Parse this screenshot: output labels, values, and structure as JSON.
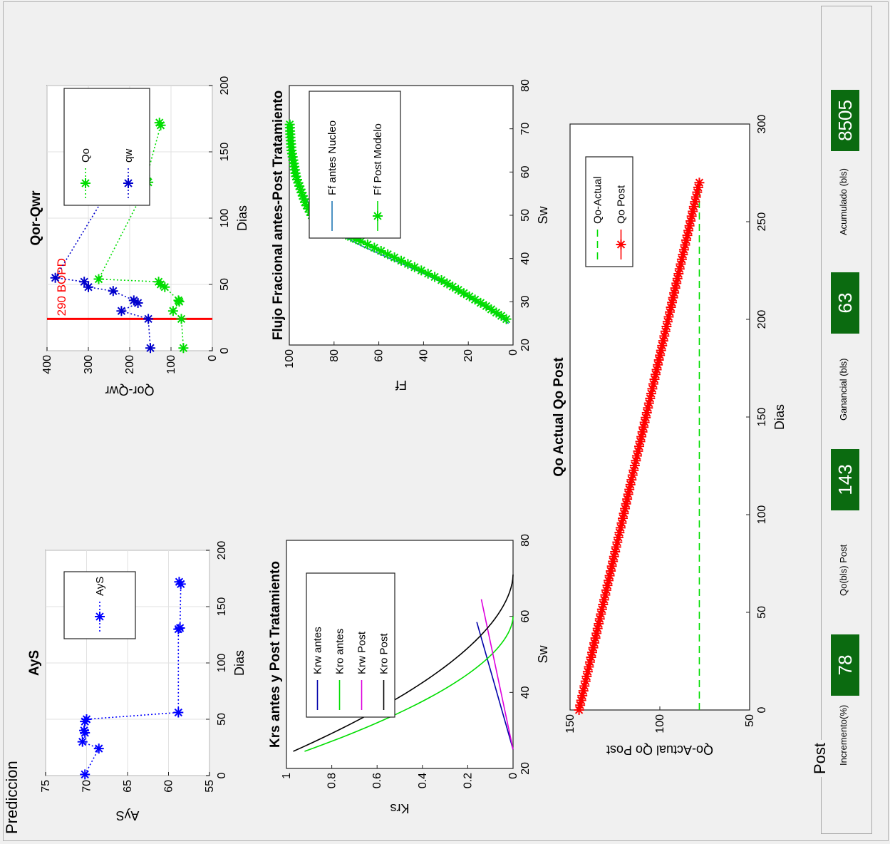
{
  "window": {
    "panel_title": "Prediccion"
  },
  "charts": [
    {
      "type": "scatter",
      "title": "AyS",
      "xlabel": "Dias",
      "ylabel": "AyS",
      "xlim": [
        0,
        200
      ],
      "ylim": [
        55,
        75
      ],
      "xticks": [
        0,
        50,
        100,
        150,
        200
      ],
      "yticks": [
        55,
        60,
        65,
        70,
        75
      ],
      "grid": true,
      "legend_position": "top-right",
      "series": [
        {
          "name": "AyS",
          "color": "#0000ff",
          "line": "dotted",
          "marker": "star",
          "x": [
            1,
            24,
            30,
            38,
            40,
            48,
            50,
            56,
            130,
            131,
            170,
            172
          ],
          "y": [
            70.2,
            68.5,
            70.5,
            70.2,
            70.3,
            70.2,
            70.0,
            58.8,
            58.8,
            58.6,
            58.5,
            58.7
          ]
        }
      ]
    },
    {
      "type": "scatter",
      "title": "Qor-Qwr",
      "xlabel": "Dias",
      "ylabel": "Qor-Qwr",
      "xlim": [
        0,
        200
      ],
      "ylim": [
        0,
        400
      ],
      "xticks": [
        0,
        50,
        100,
        150,
        200
      ],
      "yticks": [
        0,
        100,
        200,
        300,
        400
      ],
      "grid": true,
      "legend_position": "top-right",
      "annotation": {
        "text": "290 BOPD",
        "color": "#ff0000",
        "vline_x": 24
      },
      "series": [
        {
          "name": "Qo",
          "color": "#00dd00",
          "line": "dotted",
          "marker": "star",
          "x": [
            2,
            24,
            30,
            37,
            38,
            48,
            50,
            52,
            54,
            127,
            130,
            170,
            172
          ],
          "y": [
            70,
            75,
            95,
            80,
            82,
            115,
            125,
            130,
            275,
            155,
            160,
            125,
            128
          ]
        },
        {
          "name": "qw",
          "color": "#0000cc",
          "line": "dotted",
          "marker": "star",
          "x": [
            2,
            24,
            30,
            36,
            38,
            45,
            48,
            52,
            55,
            127,
            130,
            170,
            172
          ],
          "y": [
            150,
            155,
            220,
            180,
            190,
            240,
            300,
            310,
            380,
            240,
            210,
            190,
            185
          ]
        }
      ]
    },
    {
      "type": "line",
      "title": "Krs antes y Post Tratamiento",
      "xlabel": "Sw",
      "ylabel": "Krs",
      "xlim": [
        20,
        80
      ],
      "ylim": [
        0,
        1
      ],
      "xticks": [
        20,
        40,
        60,
        80
      ],
      "yticks": [
        0,
        0.2,
        0.4,
        0.6,
        0.8,
        1
      ],
      "grid": false,
      "legend_position": "top-right",
      "series": [
        {
          "name": "Krw antes",
          "color": "#0000aa",
          "shape": "straight",
          "x": [
            25,
            58.5
          ],
          "y": [
            0,
            0.16
          ]
        },
        {
          "name": "Kro antes",
          "color": "#00dd00",
          "shape": "convex",
          "sor_x": 60,
          "x": [
            24.5,
            60
          ],
          "y": [
            0.92,
            0
          ]
        },
        {
          "name": "Krw Post",
          "color": "#dd00dd",
          "shape": "straight",
          "x": [
            25,
            64.5
          ],
          "y": [
            0,
            0.14
          ]
        },
        {
          "name": "Kro Post",
          "color": "#000000",
          "shape": "convex",
          "x": [
            24.5,
            71
          ],
          "y": [
            0.97,
            0
          ]
        }
      ]
    },
    {
      "type": "line",
      "title": "Flujo Fracional antes-Post Tratamiento",
      "xlabel": "Sw",
      "ylabel": "Ff",
      "xlim": [
        20,
        80
      ],
      "ylim": [
        0,
        100
      ],
      "xticks": [
        20,
        30,
        40,
        50,
        60,
        70,
        80
      ],
      "yticks": [
        0,
        20,
        40,
        60,
        80,
        100
      ],
      "grid": false,
      "legend_position": "top-right",
      "series": [
        {
          "name": "Ff antes Nucleo",
          "color": "#1f77b4",
          "line": "solid",
          "x": [
            25,
            28,
            31,
            34,
            37,
            40,
            43,
            46,
            50,
            55,
            60,
            65,
            70,
            72
          ],
          "y": [
            2,
            10,
            20,
            30,
            42,
            55,
            68,
            79,
            88,
            94,
            97,
            99,
            99.5,
            99.7
          ]
        },
        {
          "name": "Ff Post Modelo",
          "color": "#00dd00",
          "line": "solid",
          "marker": "star",
          "x": [
            26,
            29,
            32,
            35,
            38,
            41,
            44,
            46,
            48,
            50,
            53,
            56,
            59,
            62,
            65,
            68,
            71
          ],
          "y": [
            3,
            12,
            22,
            32,
            44,
            56,
            68,
            77,
            85,
            90,
            93,
            95,
            97,
            98,
            99,
            99.5,
            99.8
          ]
        }
      ]
    },
    {
      "type": "line",
      "title": "Qo Actual  Qo Post",
      "xlabel": "Dias",
      "ylabel": "Qo-Actual Qo Post",
      "xlim": [
        0,
        300
      ],
      "ylim": [
        50,
        150
      ],
      "xticks": [
        0,
        50,
        100,
        150,
        200,
        250,
        300
      ],
      "yticks": [
        50,
        100,
        150
      ],
      "grid": false,
      "legend_position": "top-right",
      "series": [
        {
          "name": "Qo-Actual",
          "color": "#00dd00",
          "line": "dashed",
          "x": [
            0,
            270
          ],
          "y": [
            78,
            78
          ]
        },
        {
          "name": "Qo Post",
          "color": "#ff0000",
          "line": "solid",
          "marker": "star",
          "x": [
            0,
            270
          ],
          "y": [
            145,
            78
          ]
        }
      ]
    }
  ],
  "post_panel": {
    "title": "Post",
    "stats": [
      {
        "label": "Incremento(%)",
        "value": "78"
      },
      {
        "label": "Qo(bls) Post",
        "value": "143"
      },
      {
        "label": "Ganancial (bls)",
        "value": "63"
      },
      {
        "label": "Acumulado (bls)",
        "value": "8505"
      }
    ]
  }
}
